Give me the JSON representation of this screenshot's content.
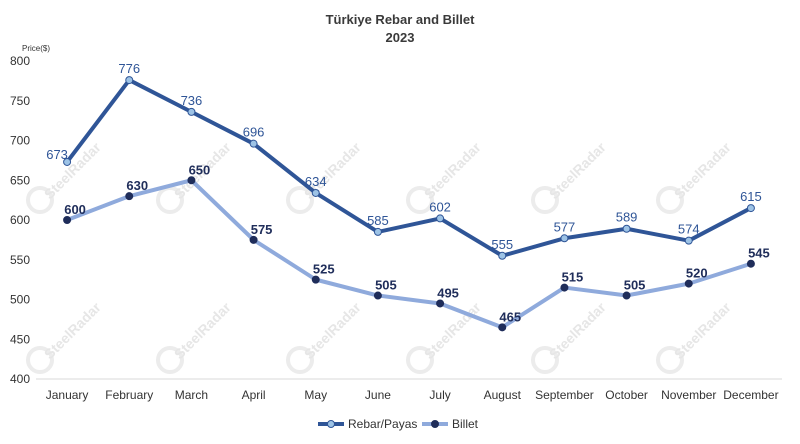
{
  "chart_data": {
    "type": "line",
    "title": "Türkiye Rebar and Billet",
    "subtitle": "2023",
    "ylabel": "Price($)",
    "xlabel": "",
    "categories": [
      "January",
      "February",
      "March",
      "April",
      "May",
      "June",
      "July",
      "August",
      "September",
      "October",
      "November",
      "December"
    ],
    "ylim": [
      400,
      800
    ],
    "yticks": [
      400,
      450,
      500,
      550,
      600,
      650,
      700,
      750,
      800
    ],
    "grid": false,
    "legend_position": "bottom",
    "series": [
      {
        "name": "Rebar/Payas",
        "color": "#2f5597",
        "marker_color": "#9dc3e6",
        "values": [
          673,
          776,
          736,
          696,
          634,
          585,
          602,
          555,
          577,
          589,
          574,
          615
        ]
      },
      {
        "name": "Billet",
        "color": "#8faadc",
        "marker_color": "#1f2d5a",
        "values": [
          600,
          630,
          650,
          575,
          525,
          505,
          495,
          465,
          515,
          505,
          520,
          545
        ]
      }
    ],
    "watermark": "SteelRadar"
  }
}
